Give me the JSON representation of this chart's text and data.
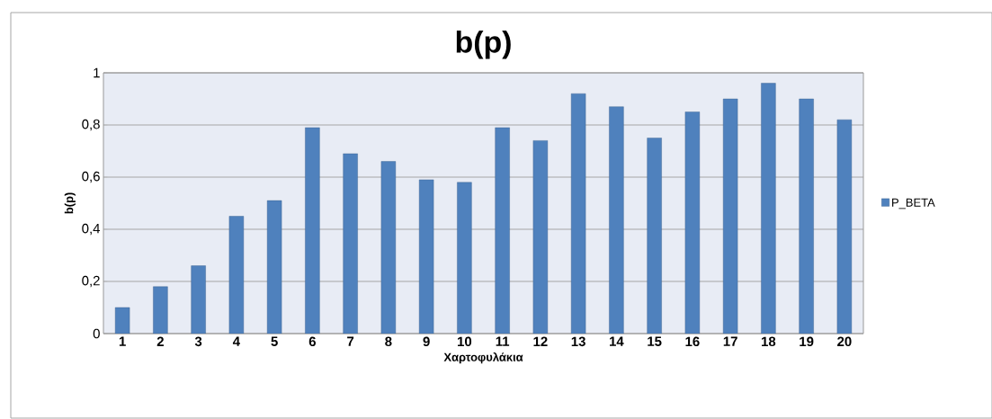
{
  "chart_data": {
    "type": "bar",
    "title": "b(p)",
    "xlabel": "Χαρτοφυλάκια",
    "ylabel": "b(p)",
    "categories": [
      "1",
      "2",
      "3",
      "4",
      "5",
      "6",
      "7",
      "8",
      "9",
      "10",
      "11",
      "12",
      "13",
      "14",
      "15",
      "16",
      "17",
      "18",
      "19",
      "20"
    ],
    "series": [
      {
        "name": "P_BETA",
        "color": "#4f81bd",
        "values": [
          0.1,
          0.18,
          0.26,
          0.45,
          0.51,
          0.79,
          0.69,
          0.66,
          0.59,
          0.58,
          0.79,
          0.74,
          0.92,
          0.87,
          0.75,
          0.85,
          0.9,
          0.96,
          0.9,
          0.82
        ]
      }
    ],
    "ylim": [
      0,
      1
    ],
    "yticks": [
      {
        "value": 0,
        "label": "0"
      },
      {
        "value": 0.2,
        "label": "0,2"
      },
      {
        "value": 0.4,
        "label": "0,4"
      },
      {
        "value": 0.6,
        "label": "0,6"
      },
      {
        "value": 0.8,
        "label": "0,8"
      },
      {
        "value": 1,
        "label": "1"
      }
    ],
    "grid": "y",
    "legend": "right"
  }
}
